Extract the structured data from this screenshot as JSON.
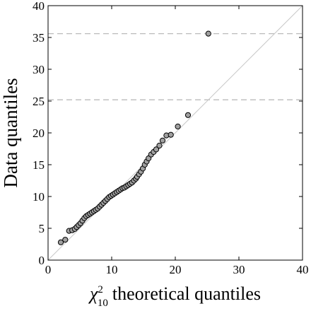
{
  "chart_data": {
    "type": "scatter",
    "xlabel": {
      "symbol": "χ",
      "sup": "2",
      "sub": "10",
      "text": "theoretical quantiles"
    },
    "ylabel": "Data quantiles",
    "x": [
      2.0,
      2.7,
      3.3,
      3.8,
      4.2,
      4.5,
      4.8,
      5.1,
      5.4,
      5.7,
      6.0,
      6.3,
      6.6,
      6.9,
      7.2,
      7.5,
      7.8,
      8.1,
      8.4,
      8.7,
      9.0,
      9.3,
      9.6,
      9.9,
      10.2,
      10.5,
      10.8,
      11.1,
      11.4,
      11.7,
      12.0,
      12.3,
      12.6,
      12.9,
      13.2,
      13.5,
      13.8,
      14.0,
      14.3,
      14.6,
      14.9,
      15.2,
      15.5,
      15.8,
      16.2,
      16.6,
      17.0,
      17.5,
      18.0,
      18.6,
      19.3,
      20.4,
      22.0,
      25.2
    ],
    "values": [
      2.8,
      3.2,
      4.6,
      4.7,
      4.9,
      5.2,
      5.5,
      5.8,
      6.2,
      6.6,
      6.9,
      7.1,
      7.3,
      7.5,
      7.7,
      7.9,
      8.1,
      8.4,
      8.7,
      9.0,
      9.3,
      9.6,
      9.9,
      10.1,
      10.3,
      10.5,
      10.7,
      10.9,
      11.1,
      11.3,
      11.4,
      11.6,
      11.8,
      12.0,
      12.2,
      12.5,
      12.8,
      13.1,
      13.5,
      13.9,
      14.4,
      15.0,
      15.5,
      16.0,
      16.6,
      17.0,
      17.4,
      18.0,
      18.8,
      19.6,
      19.7,
      21.0,
      22.8,
      35.6
    ],
    "color": "#a0a0a0",
    "hlines": [
      25.2,
      35.6
    ],
    "diagonal": true,
    "xlim": [
      0,
      40
    ],
    "xticks": [
      0,
      10,
      20,
      30,
      40
    ],
    "ylim": [
      0,
      40
    ],
    "yticks": [
      0,
      5,
      10,
      15,
      20,
      25,
      30,
      35,
      40
    ]
  }
}
